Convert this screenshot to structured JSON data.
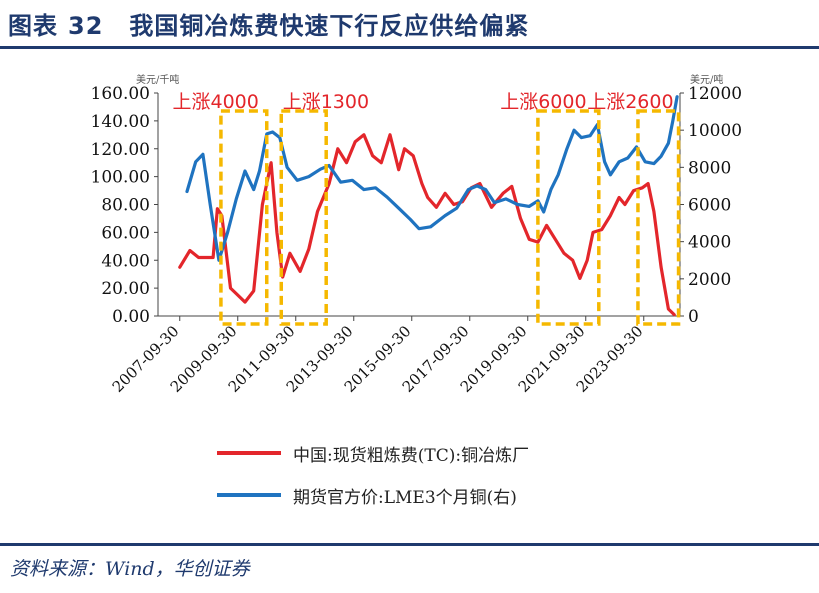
{
  "header": {
    "prefix": "图表",
    "number": "32",
    "title": "我国铜冶炼费快速下行反应供给偏紧"
  },
  "source": "资料来源：Wind，华创证券",
  "colors": {
    "red": "#e3262b",
    "blue": "#1f73c0",
    "box": "#f5b800",
    "navy": "#1f3a6e"
  },
  "chart_data": {
    "type": "line",
    "left_unit": "美元/千吨",
    "right_unit": "美元/吨",
    "ylim_left": [
      0,
      160
    ],
    "ylim_right": [
      0,
      12000
    ],
    "left_ticks": [
      "160.00",
      "140.00",
      "120.00",
      "100.00",
      "80.00",
      "60.00",
      "40.00",
      "20.00",
      "0.00"
    ],
    "right_ticks": [
      "12000",
      "10000",
      "8000",
      "6000",
      "4000",
      "2000",
      "0"
    ],
    "x_ticks": [
      "2007-09-30",
      "2009-09-30",
      "2011-09-30",
      "2013-09-30",
      "2015-09-30",
      "2017-09-30",
      "2019-09-30",
      "2021-09-30",
      "2023-09-30"
    ],
    "annotations": [
      {
        "label": "上涨4000",
        "from": 2009.17,
        "to": 2010.75,
        "label_x": 2007.5
      },
      {
        "label": "上涨1300",
        "from": 2011.25,
        "to": 2012.8,
        "label_x": 2011.3
      },
      {
        "label": "上涨6000",
        "from": 2020.1,
        "to": 2022.2,
        "label_x": 2018.8
      },
      {
        "label": "上涨2600",
        "from": 2023.55,
        "to": 2024.95,
        "label_x": 2021.8
      }
    ],
    "series": [
      {
        "name": "中国:现货粗炼费(TC):铜冶炼厂",
        "axis": "left",
        "x": [
          2007.75,
          2008.1,
          2008.4,
          2008.7,
          2008.9,
          2009.05,
          2009.2,
          2009.5,
          2009.75,
          2010.0,
          2010.3,
          2010.6,
          2010.9,
          2011.1,
          2011.3,
          2011.55,
          2011.9,
          2012.2,
          2012.5,
          2012.9,
          2013.2,
          2013.5,
          2013.8,
          2014.1,
          2014.4,
          2014.7,
          2015.0,
          2015.3,
          2015.5,
          2015.8,
          2016.1,
          2016.3,
          2016.6,
          2016.9,
          2017.2,
          2017.5,
          2017.8,
          2018.1,
          2018.5,
          2018.9,
          2019.2,
          2019.5,
          2019.8,
          2020.1,
          2020.4,
          2020.7,
          2021.0,
          2021.3,
          2021.55,
          2021.8,
          2022.0,
          2022.3,
          2022.6,
          2022.9,
          2023.1,
          2023.4,
          2023.7,
          2023.9,
          2024.1,
          2024.35,
          2024.6,
          2024.8
        ],
        "values": [
          35,
          47,
          42,
          42,
          42,
          77,
          72,
          20,
          15,
          10,
          18,
          80,
          110,
          60,
          28,
          45,
          32,
          48,
          75,
          95,
          120,
          110,
          125,
          130,
          115,
          110,
          130,
          105,
          120,
          115,
          95,
          85,
          78,
          88,
          80,
          82,
          92,
          95,
          78,
          88,
          93,
          70,
          55,
          53,
          65,
          55,
          45,
          40,
          27,
          40,
          60,
          62,
          72,
          85,
          80,
          90,
          92,
          95,
          75,
          35,
          5,
          1
        ]
      },
      {
        "name": "期货官方价:LME3个月铜(右)",
        "axis": "right",
        "x": [
          2008.0,
          2008.3,
          2008.55,
          2008.8,
          2009.1,
          2009.4,
          2009.7,
          2010.0,
          2010.3,
          2010.5,
          2010.75,
          2010.95,
          2011.2,
          2011.45,
          2011.8,
          2012.2,
          2012.6,
          2012.9,
          2013.3,
          2013.7,
          2014.1,
          2014.5,
          2014.9,
          2015.3,
          2015.7,
          2016.0,
          2016.4,
          2016.9,
          2017.3,
          2017.7,
          2018.0,
          2018.3,
          2018.6,
          2019.0,
          2019.4,
          2019.8,
          2020.1,
          2020.3,
          2020.55,
          2020.8,
          2021.1,
          2021.35,
          2021.6,
          2021.9,
          2022.15,
          2022.4,
          2022.6,
          2022.9,
          2023.2,
          2023.5,
          2023.8,
          2024.1,
          2024.35,
          2024.6,
          2024.75,
          2024.9
        ],
        "values": [
          6700,
          8300,
          8700,
          6000,
          3000,
          4500,
          6300,
          7800,
          6800,
          7800,
          9800,
          9900,
          9600,
          8000,
          7300,
          7500,
          7900,
          8100,
          7200,
          7300,
          6800,
          6900,
          6400,
          5800,
          5200,
          4700,
          4800,
          5400,
          5800,
          6800,
          7000,
          6800,
          6100,
          6300,
          6000,
          5900,
          6200,
          5600,
          6800,
          7600,
          9000,
          10000,
          9600,
          9700,
          10300,
          8300,
          7600,
          8300,
          8500,
          9100,
          8300,
          8200,
          8600,
          9300,
          10500,
          11800
        ]
      }
    ]
  }
}
